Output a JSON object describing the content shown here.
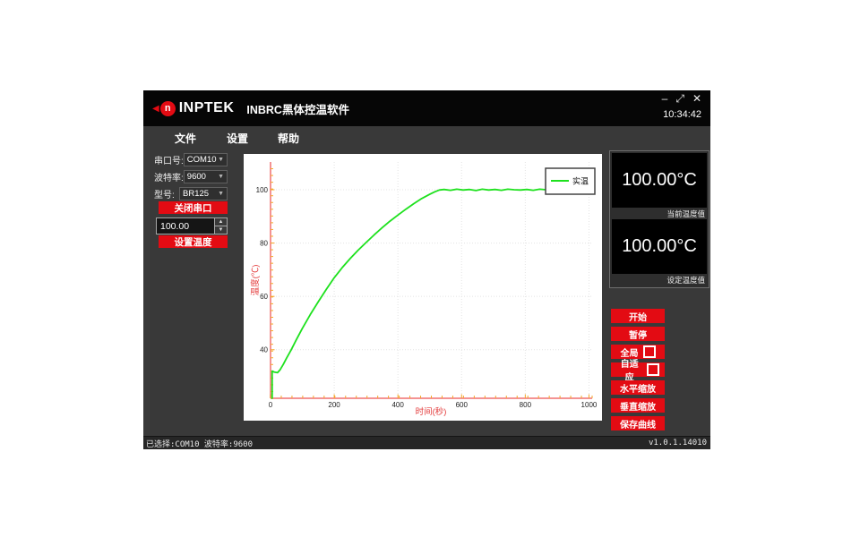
{
  "window": {
    "brand": "INPTEK",
    "title": "INBRC黑体控温软件",
    "clock": "10:34:42",
    "logo_glyph": "n",
    "logo_arrow": "◀",
    "controls": {
      "minimize": "–",
      "resize": "⤢",
      "close": "✕"
    }
  },
  "menu": {
    "items": [
      {
        "label": "文件"
      },
      {
        "label": "设置"
      },
      {
        "label": "帮助"
      }
    ]
  },
  "left_panel": {
    "fields": [
      {
        "label": "串口号:",
        "value": "COM10"
      },
      {
        "label": "波特率:",
        "value": "9600"
      },
      {
        "label": "型号:",
        "value": "BR125"
      }
    ],
    "caret": "▼",
    "close_serial_button": "关闭串口",
    "temp_input_value": "100.00",
    "spin_up": "▲",
    "spin_down": "▼",
    "set_temp_button": "设置温度"
  },
  "displays": [
    {
      "value": "100.00°C",
      "label": "当前温度值"
    },
    {
      "value": "100.00°C",
      "label": "设定温度值"
    }
  ],
  "action_buttons": [
    {
      "label": "开始",
      "has_checkbox": false
    },
    {
      "label": "暂停",
      "has_checkbox": false
    },
    {
      "label": "全局",
      "has_checkbox": true
    },
    {
      "label": "自适应",
      "has_checkbox": true
    },
    {
      "label": "水平缩放",
      "has_checkbox": false
    },
    {
      "label": "垂直缩放",
      "has_checkbox": false
    },
    {
      "label": "保存曲线",
      "has_checkbox": false
    }
  ],
  "statusbar": {
    "left": "已选择:COM10 波特率:9600",
    "right": "v1.0.1.14010"
  },
  "colors": {
    "accent_red": "#e30b13",
    "curve_green": "#1ee11e",
    "axis_salmon": "#f49393",
    "tick_orange": "#f5a62a",
    "axis_label_red": "#e33b3b"
  },
  "chart_data": {
    "type": "line",
    "title": "",
    "xlabel": "时间(秒)",
    "ylabel": "温度(℃)",
    "xlim": [
      0,
      1010
    ],
    "ylim": [
      21.8,
      110.4
    ],
    "xticks": [
      0,
      200,
      400,
      600,
      800,
      1000
    ],
    "yticks": [
      40,
      60,
      80,
      100
    ],
    "grid": true,
    "legend": {
      "position": "top-right",
      "entries": [
        {
          "name": "实温",
          "color": "#1ee11e"
        }
      ]
    },
    "series": [
      {
        "name": "实温",
        "color": "#1ee11e",
        "points": [
          [
            5,
            21.8
          ],
          [
            5,
            32
          ],
          [
            12,
            31.6
          ],
          [
            22,
            31.4
          ],
          [
            30,
            32.5
          ],
          [
            40,
            34.5
          ],
          [
            50,
            36.8
          ],
          [
            65,
            40
          ],
          [
            80,
            43.5
          ],
          [
            100,
            48
          ],
          [
            125,
            53.2
          ],
          [
            150,
            58
          ],
          [
            175,
            62.6
          ],
          [
            200,
            67
          ],
          [
            225,
            70.8
          ],
          [
            250,
            74.2
          ],
          [
            275,
            77.3
          ],
          [
            300,
            80.2
          ],
          [
            325,
            83
          ],
          [
            350,
            85.7
          ],
          [
            375,
            88.2
          ],
          [
            400,
            90.5
          ],
          [
            425,
            92.7
          ],
          [
            450,
            94.8
          ],
          [
            475,
            96.7
          ],
          [
            500,
            98.3
          ],
          [
            515,
            99.2
          ],
          [
            530,
            99.9
          ],
          [
            545,
            100.1
          ],
          [
            565,
            99.8
          ],
          [
            585,
            100.2
          ],
          [
            605,
            99.9
          ],
          [
            625,
            100.1
          ],
          [
            645,
            99.7
          ],
          [
            665,
            100.2
          ],
          [
            685,
            99.9
          ],
          [
            705,
            100.1
          ],
          [
            725,
            99.8
          ],
          [
            745,
            100.2
          ],
          [
            765,
            100.0
          ],
          [
            785,
            99.9
          ],
          [
            805,
            100.1
          ],
          [
            825,
            99.8
          ],
          [
            845,
            100.2
          ],
          [
            865,
            100.0
          ],
          [
            885,
            99.9
          ],
          [
            905,
            100.1
          ],
          [
            925,
            99.8
          ],
          [
            945,
            100.1
          ],
          [
            965,
            99.9
          ],
          [
            985,
            100.1
          ],
          [
            1010,
            100.0
          ]
        ]
      }
    ]
  }
}
